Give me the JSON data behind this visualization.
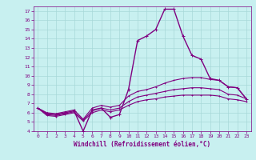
{
  "bg_color": "#c8f0f0",
  "grid_color": "#a8d8d8",
  "line_color": "#800080",
  "xlabel": "Windchill (Refroidissement éolien,°C)",
  "xlabel_color": "#800080",
  "tick_color": "#800080",
  "ylim": [
    4,
    17.5
  ],
  "xlim": [
    -0.5,
    23.5
  ],
  "yticks": [
    4,
    5,
    6,
    7,
    8,
    9,
    10,
    11,
    12,
    13,
    14,
    15,
    16,
    17
  ],
  "xticks": [
    0,
    1,
    2,
    3,
    4,
    5,
    6,
    7,
    8,
    9,
    10,
    11,
    12,
    13,
    14,
    15,
    16,
    17,
    18,
    19,
    20,
    21,
    22,
    23
  ],
  "series": [
    [
      6.5,
      5.9,
      5.8,
      6.0,
      6.2,
      4.0,
      6.3,
      6.5,
      5.5,
      5.8,
      8.5,
      13.8,
      14.3,
      15.0,
      17.2,
      17.2,
      14.3,
      12.2,
      11.8,
      9.7,
      9.5,
      8.8,
      8.7,
      7.5
    ],
    [
      6.5,
      6.0,
      5.9,
      6.1,
      6.3,
      5.3,
      6.5,
      6.8,
      6.6,
      6.8,
      7.8,
      8.3,
      8.5,
      8.8,
      9.2,
      9.5,
      9.7,
      9.8,
      9.8,
      9.6,
      9.5,
      8.8,
      8.7,
      7.5
    ],
    [
      6.5,
      5.8,
      5.7,
      5.9,
      6.1,
      5.2,
      6.2,
      6.5,
      6.3,
      6.5,
      7.2,
      7.7,
      7.9,
      8.1,
      8.3,
      8.5,
      8.6,
      8.7,
      8.7,
      8.6,
      8.5,
      8.0,
      7.9,
      7.5
    ],
    [
      6.5,
      5.7,
      5.6,
      5.8,
      6.0,
      5.1,
      6.0,
      6.3,
      6.1,
      6.3,
      6.8,
      7.2,
      7.4,
      7.5,
      7.7,
      7.8,
      7.9,
      7.9,
      7.9,
      7.9,
      7.8,
      7.5,
      7.4,
      7.2
    ]
  ]
}
